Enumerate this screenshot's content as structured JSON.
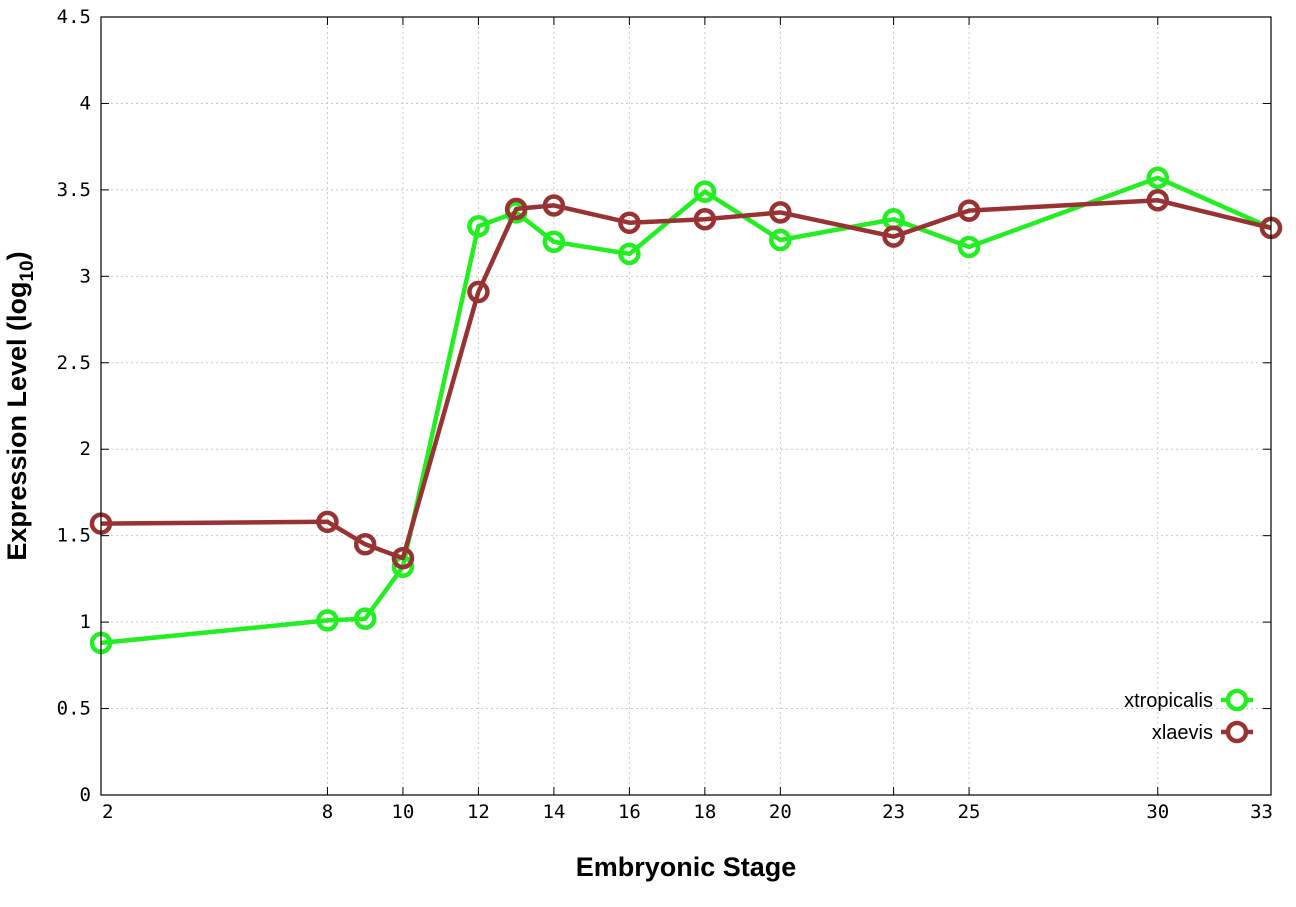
{
  "chart_data": {
    "type": "line",
    "xlabel": "Embryonic Stage",
    "ylabel_main": "Expression Level (log",
    "ylabel_sub": "10",
    "ylabel_close": ")",
    "xlim": [
      2,
      33
    ],
    "ylim": [
      0,
      4.5
    ],
    "x_ticks": [
      2,
      8,
      10,
      12,
      14,
      16,
      18,
      20,
      23,
      25,
      30,
      33
    ],
    "y_ticks": [
      0,
      0.5,
      1,
      1.5,
      2,
      2.5,
      3,
      3.5,
      4,
      4.5
    ],
    "y_tick_labels": [
      "0",
      "0.5",
      "1",
      "1.5",
      "2",
      "2.5",
      "3",
      "3.5",
      "4",
      "4.5"
    ],
    "grid": true,
    "legend_position": "bottom-right",
    "series": [
      {
        "name": "xtropicalis",
        "color": "#22ee22",
        "x": [
          2,
          8,
          9,
          10,
          12,
          13,
          14,
          16,
          18,
          20,
          23,
          25,
          30,
          33
        ],
        "y": [
          0.88,
          1.01,
          1.02,
          1.32,
          3.29,
          3.37,
          3.2,
          3.13,
          3.49,
          3.21,
          3.33,
          3.17,
          3.57,
          3.28
        ]
      },
      {
        "name": "xlaevis",
        "color": "#993333",
        "x": [
          2,
          8,
          9,
          10,
          12,
          13,
          14,
          16,
          18,
          20,
          23,
          25,
          30,
          33
        ],
        "y": [
          1.57,
          1.58,
          1.45,
          1.37,
          2.91,
          3.39,
          3.41,
          3.31,
          3.33,
          3.37,
          3.23,
          3.38,
          3.44,
          3.28
        ]
      }
    ]
  }
}
